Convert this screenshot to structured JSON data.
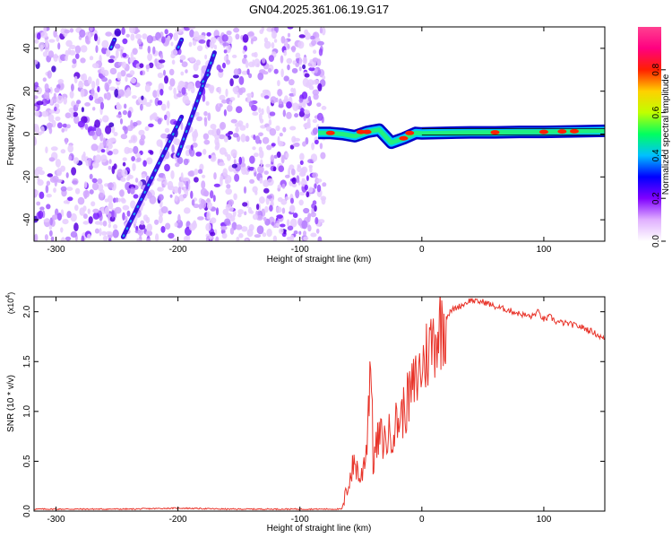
{
  "title": "GN04.2025.361.06.19.G17",
  "colors": {
    "series_line": "#e8342a",
    "colorbar_stops": [
      "#ffffff",
      "#e0b0ff",
      "#8000ff",
      "#0000ff",
      "#00c0ff",
      "#00ff60",
      "#c0ff00",
      "#ffd000",
      "#ff2000",
      "#ff0080",
      "#ff4090"
    ]
  },
  "chart_data": [
    {
      "type": "heatmap",
      "xlabel": "Height of straight line (km)",
      "ylabel": "Frequency (Hz)",
      "xlim": [
        -318,
        150
      ],
      "ylim": [
        -50,
        50
      ],
      "x_ticks": [
        -300,
        -200,
        -100,
        0,
        100
      ],
      "x_tick_labels": [
        "-300",
        "-200",
        "-100",
        "0",
        "100"
      ],
      "y_ticks": [
        -40,
        -20,
        0,
        20,
        40
      ],
      "y_tick_labels": [
        "-40",
        "-20",
        "0",
        "20",
        "40"
      ],
      "noise_region_x": [
        -318,
        -80
      ],
      "streaks": [
        {
          "x": [
            -245,
            -197
          ],
          "y": [
            -48,
            8
          ]
        },
        {
          "x": [
            -200,
            -170
          ],
          "y": [
            -10,
            38
          ]
        },
        {
          "x": [
            -255,
            -252
          ],
          "y": [
            40,
            44
          ]
        },
        {
          "x": [
            -200,
            -197
          ],
          "y": [
            40,
            44
          ]
        },
        {
          "x": [
            -180,
            -175
          ],
          "y": [
            24,
            28
          ]
        }
      ],
      "ridge": {
        "x": [
          -85,
          -75,
          -65,
          -55,
          -45,
          -35,
          -25,
          -15,
          -5,
          0,
          20,
          40,
          60,
          80,
          100,
          120,
          150
        ],
        "y": [
          0.5,
          0.5,
          0,
          -1,
          1,
          2,
          -4,
          -2,
          0.5,
          0.3,
          0.6,
          0.8,
          0.8,
          1,
          1,
          1.2,
          1.5
        ]
      },
      "colorbar": {
        "label": "Normalized spectral amplitude",
        "range": [
          0,
          1
        ],
        "ticks": [
          0.0,
          0.2,
          0.4,
          0.6,
          0.8
        ],
        "tick_labels": [
          "0.0",
          "0.2",
          "0.4",
          "0.6",
          "0.8"
        ]
      }
    },
    {
      "type": "line",
      "xlabel": "Height of straight line (km)",
      "ylabel": "SNR (10 * v/v)",
      "y_exponent_label": "(x10",
      "y_exponent_power": "4",
      "y_exponent_close": ")",
      "xlim": [
        -318,
        150
      ],
      "ylim": [
        0,
        2.15
      ],
      "x_ticks": [
        -300,
        -200,
        -100,
        0,
        100
      ],
      "x_tick_labels": [
        "-300",
        "-200",
        "-100",
        "0",
        "100"
      ],
      "y_ticks": [
        0,
        0.5,
        1.0,
        1.5,
        2.0
      ],
      "y_tick_labels": [
        "0.0",
        "0.5",
        "1.0",
        "1.5",
        "2.0"
      ],
      "series": [
        {
          "x": [
            -318,
            -280,
            -240,
            -200,
            -160,
            -120,
            -90,
            -65,
            -60,
            -55,
            -50,
            -45,
            -42,
            -40,
            -35,
            -30,
            -25,
            -20,
            -15,
            -10,
            -5,
            0,
            5,
            10,
            15,
            20,
            25,
            30,
            35,
            40,
            45,
            50,
            55,
            60,
            70,
            80,
            90,
            95,
            100,
            105,
            110,
            120,
            130,
            140,
            150
          ],
          "y": [
            0.02,
            0.02,
            0.02,
            0.03,
            0.02,
            0.02,
            0.02,
            0.02,
            0.3,
            0.5,
            0.3,
            0.7,
            1.62,
            0.5,
            0.75,
            0.7,
            0.8,
            0.9,
            1.0,
            1.15,
            1.3,
            1.45,
            1.6,
            1.75,
            1.85,
            1.95,
            2.02,
            2.05,
            2.08,
            2.12,
            2.1,
            2.1,
            2.08,
            2.05,
            2.02,
            1.98,
            1.95,
            2.0,
            1.92,
            1.95,
            1.9,
            1.88,
            1.85,
            1.8,
            1.72
          ]
        }
      ]
    }
  ]
}
